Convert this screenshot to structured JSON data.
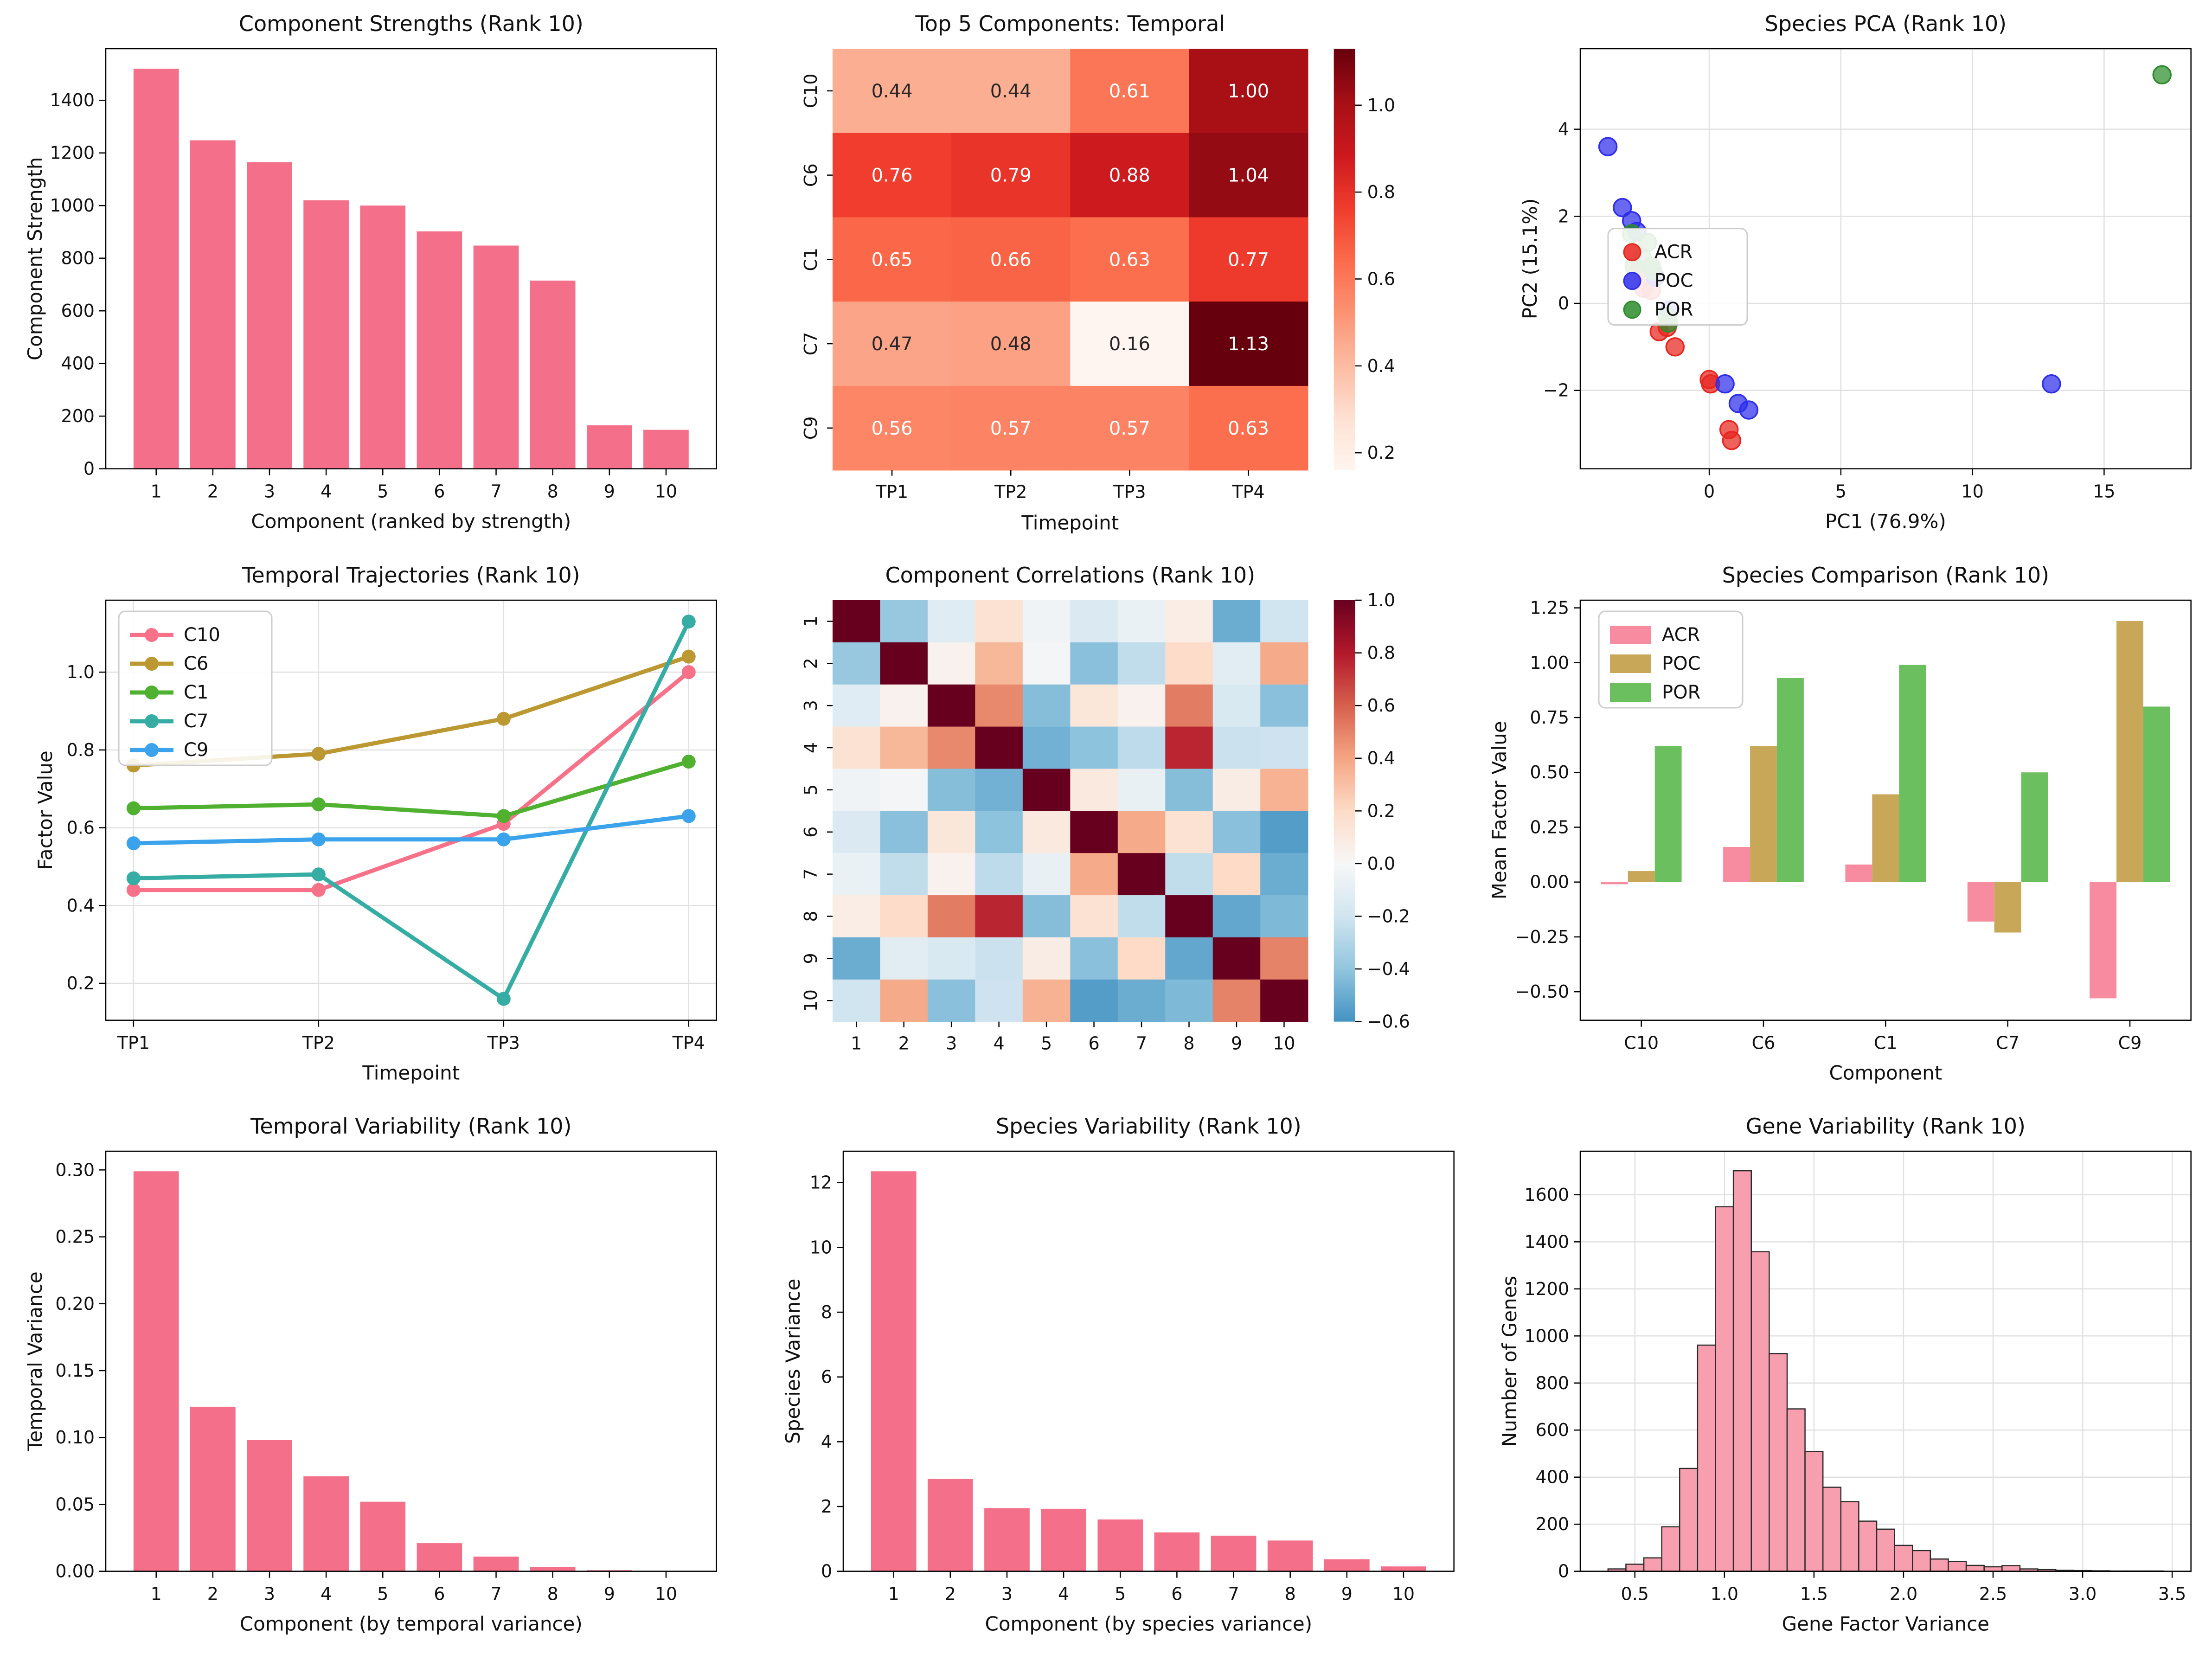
{
  "figure": {
    "background": "#ffffff",
    "grid_color": "#e0e0e0",
    "spine_color": "#000000",
    "text_color": "#111111",
    "annot_dark": "#262626",
    "annot_light": "#ffffff"
  },
  "chart_data": [
    {
      "id": "component-strengths",
      "type": "bar",
      "title": "Component Strengths (Rank 10)",
      "xlabel": "Component (ranked by strength)",
      "ylabel": "Component Strength",
      "categories": [
        "1",
        "2",
        "3",
        "4",
        "5",
        "6",
        "7",
        "8",
        "9",
        "10"
      ],
      "values": [
        1520,
        1248,
        1165,
        1020,
        1000,
        902,
        848,
        715,
        165,
        148
      ],
      "bar_color": "#f4708a",
      "ylim": [
        0,
        1596
      ],
      "yticks": {
        "values": [
          0,
          200,
          400,
          600,
          800,
          1000,
          1200,
          1400
        ],
        "labels": [
          "0",
          "200",
          "400",
          "600",
          "800",
          "1000",
          "1200",
          "1400"
        ]
      },
      "grid": false
    },
    {
      "id": "top5-temporal",
      "type": "heatmap_annot",
      "title": "Top 5 Components: Temporal",
      "xlabel": "Timepoint",
      "rows": [
        "C10",
        "C6",
        "C1",
        "C7",
        "C9"
      ],
      "cols": [
        "TP1",
        "TP2",
        "TP3",
        "TP4"
      ],
      "values": [
        [
          0.44,
          0.44,
          0.61,
          1.0
        ],
        [
          0.76,
          0.79,
          0.88,
          1.04
        ],
        [
          0.65,
          0.66,
          0.63,
          0.77
        ],
        [
          0.47,
          0.48,
          0.16,
          1.13
        ],
        [
          0.56,
          0.57,
          0.57,
          0.63
        ]
      ],
      "vmin": 0.16,
      "vmax": 1.13,
      "cmap": "reds",
      "colorbar": {
        "ticks": [
          1.0,
          0.8,
          0.6,
          0.4,
          0.2
        ],
        "labels": [
          "1.0",
          "0.8",
          "0.6",
          "0.4",
          "0.2"
        ]
      }
    },
    {
      "id": "species-pca",
      "type": "scatter",
      "title": "Species PCA (Rank 10)",
      "xlabel": "PC1 (76.9%)",
      "ylabel": "PC2 (15.1%)",
      "xlim": [
        -4.9,
        18.3
      ],
      "ylim": [
        -3.8,
        5.85
      ],
      "xticks": {
        "values": [
          0,
          5,
          10,
          15
        ],
        "labels": [
          "0",
          "5",
          "10",
          "15"
        ]
      },
      "yticks": {
        "values": [
          -2,
          0,
          2,
          4
        ],
        "labels": [
          "−2",
          "0",
          "2",
          "4"
        ]
      },
      "grid": true,
      "legend": {
        "position": "lower-left"
      },
      "series": [
        {
          "name": "ACR",
          "color": "#e8251f",
          "points": [
            [
              -2.7,
              0.75
            ],
            [
              -2.5,
              0.35
            ],
            [
              -2.2,
              0.3
            ],
            [
              -1.9,
              -0.65
            ],
            [
              -1.6,
              -0.55
            ],
            [
              -1.3,
              -1.0
            ],
            [
              0.0,
              -1.75
            ],
            [
              0.05,
              -1.85
            ],
            [
              0.75,
              -2.9
            ],
            [
              0.85,
              -3.15
            ]
          ]
        },
        {
          "name": "POC",
          "color": "#2e2eec",
          "points": [
            [
              -3.85,
              3.6
            ],
            [
              -3.3,
              2.2
            ],
            [
              -2.95,
              1.9
            ],
            [
              -2.75,
              1.65
            ],
            [
              -2.05,
              0.6
            ],
            [
              -1.5,
              -0.15
            ],
            [
              0.6,
              -1.85
            ],
            [
              1.1,
              -2.3
            ],
            [
              1.5,
              -2.45
            ],
            [
              13.0,
              -1.85
            ]
          ]
        },
        {
          "name": "POR",
          "color": "#2c8c2c",
          "points": [
            [
              -2.95,
              1.6
            ],
            [
              -2.35,
              1.4
            ],
            [
              -2.55,
              1.05
            ],
            [
              -2.85,
              0.85
            ],
            [
              -2.2,
              0.85
            ],
            [
              -2.15,
              0.75
            ],
            [
              -1.6,
              -0.3
            ],
            [
              -1.55,
              -0.45
            ],
            [
              17.2,
              5.25
            ]
          ]
        }
      ]
    },
    {
      "id": "temporal-trajectories",
      "type": "line",
      "title": "Temporal Trajectories (Rank 10)",
      "xlabel": "Timepoint",
      "ylabel": "Factor Value",
      "x_categories": [
        "TP1",
        "TP2",
        "TP3",
        "TP4"
      ],
      "ylim": [
        0.105,
        1.185
      ],
      "yticks": {
        "values": [
          0.2,
          0.4,
          0.6,
          0.8,
          1.0
        ],
        "labels": [
          "0.2",
          "0.4",
          "0.6",
          "0.8",
          "1.0"
        ]
      },
      "grid": true,
      "legend": {
        "position": "upper-left"
      },
      "series": [
        {
          "name": "C10",
          "color": "#f77189",
          "values": [
            0.44,
            0.44,
            0.61,
            1.0
          ]
        },
        {
          "name": "C6",
          "color": "#bb9832",
          "values": [
            0.76,
            0.79,
            0.88,
            1.04
          ]
        },
        {
          "name": "C1",
          "color": "#50b131",
          "values": [
            0.65,
            0.66,
            0.63,
            0.77
          ]
        },
        {
          "name": "C7",
          "color": "#36ada4",
          "values": [
            0.47,
            0.48,
            0.16,
            1.13
          ]
        },
        {
          "name": "C9",
          "color": "#3ba3ec",
          "values": [
            0.56,
            0.57,
            0.57,
            0.63
          ]
        }
      ]
    },
    {
      "id": "component-correlations",
      "type": "heatmap_corr",
      "title": "Component Correlations (Rank 10)",
      "rows": [
        "1",
        "2",
        "3",
        "4",
        "5",
        "6",
        "7",
        "8",
        "9",
        "10"
      ],
      "cols": [
        "1",
        "2",
        "3",
        "4",
        "5",
        "6",
        "7",
        "8",
        "9",
        "10"
      ],
      "values": [
        [
          1.0,
          -0.38,
          -0.12,
          0.15,
          -0.04,
          -0.15,
          -0.07,
          0.07,
          -0.5,
          -0.2
        ],
        [
          -0.38,
          1.0,
          0.04,
          0.33,
          -0.02,
          -0.42,
          -0.25,
          0.19,
          -0.11,
          0.38
        ],
        [
          -0.12,
          0.04,
          1.0,
          0.48,
          -0.43,
          0.12,
          0.04,
          0.52,
          -0.16,
          -0.42
        ],
        [
          0.15,
          0.33,
          0.48,
          1.0,
          -0.48,
          -0.41,
          -0.26,
          0.76,
          -0.22,
          -0.21
        ],
        [
          -0.04,
          -0.02,
          -0.43,
          -0.48,
          1.0,
          0.1,
          -0.08,
          -0.43,
          0.08,
          0.35
        ],
        [
          -0.15,
          -0.42,
          0.12,
          -0.41,
          0.1,
          1.0,
          0.38,
          0.15,
          -0.42,
          -0.56
        ],
        [
          -0.07,
          -0.25,
          0.04,
          -0.26,
          -0.08,
          0.38,
          1.0,
          -0.25,
          0.2,
          -0.5
        ],
        [
          0.07,
          0.19,
          0.52,
          0.76,
          -0.43,
          0.15,
          -0.25,
          1.0,
          -0.52,
          -0.45
        ],
        [
          -0.5,
          -0.11,
          -0.16,
          -0.22,
          0.08,
          -0.42,
          0.2,
          -0.52,
          1.0,
          0.5
        ],
        [
          -0.2,
          0.38,
          -0.42,
          -0.21,
          0.35,
          -0.56,
          -0.5,
          -0.45,
          0.5,
          1.0
        ]
      ],
      "vmin": -0.6,
      "vmax": 1.0,
      "cmap": "rdbu_r",
      "colorbar": {
        "ticks": [
          1.0,
          0.8,
          0.6,
          0.4,
          0.2,
          0.0,
          -0.2,
          -0.4,
          -0.6
        ],
        "labels": [
          "1.0",
          "0.8",
          "0.6",
          "0.4",
          "0.2",
          "0.0",
          "−0.2",
          "−0.4",
          "−0.6"
        ]
      }
    },
    {
      "id": "species-comparison",
      "type": "grouped_bar",
      "title": "Species Comparison (Rank 10)",
      "xlabel": "Component",
      "ylabel": "Mean Factor Value",
      "categories": [
        "C10",
        "C6",
        "C1",
        "C7",
        "C9"
      ],
      "ylim": [
        -0.63,
        1.285
      ],
      "yticks": {
        "values": [
          -0.5,
          -0.25,
          0.0,
          0.25,
          0.5,
          0.75,
          1.0,
          1.25
        ],
        "labels": [
          "−0.50",
          "−0.25",
          "0.00",
          "0.25",
          "0.50",
          "0.75",
          "1.00",
          "1.25"
        ]
      },
      "grid": false,
      "legend": {
        "position": "upper-left"
      },
      "series": [
        {
          "name": "ACR",
          "color": "#f78ca0",
          "values": [
            -0.01,
            0.16,
            0.08,
            -0.18,
            -0.53
          ]
        },
        {
          "name": "POC",
          "color": "#c8a858",
          "values": [
            0.05,
            0.62,
            0.4,
            -0.23,
            1.19
          ]
        },
        {
          "name": "POR",
          "color": "#6cbf5e",
          "values": [
            0.62,
            0.93,
            0.99,
            0.5,
            0.8
          ]
        }
      ]
    },
    {
      "id": "temporal-variability",
      "type": "bar",
      "title": "Temporal Variability (Rank 10)",
      "xlabel": "Component (by temporal variance)",
      "ylabel": "Temporal Variance",
      "categories": [
        "1",
        "2",
        "3",
        "4",
        "5",
        "6",
        "7",
        "8",
        "9",
        "10"
      ],
      "values": [
        0.299,
        0.123,
        0.098,
        0.071,
        0.052,
        0.021,
        0.011,
        0.003,
        0.0008,
        0.0003
      ],
      "bar_color": "#f4708a",
      "ylim": [
        0,
        0.314
      ],
      "yticks": {
        "values": [
          0,
          0.05,
          0.1,
          0.15,
          0.2,
          0.25,
          0.3
        ],
        "labels": [
          "0.00",
          "0.05",
          "0.10",
          "0.15",
          "0.20",
          "0.25",
          "0.30"
        ]
      },
      "grid": false
    },
    {
      "id": "species-variability",
      "type": "bar",
      "title": "Species Variability (Rank 10)",
      "xlabel": "Component (by species variance)",
      "ylabel": "Species Variance",
      "categories": [
        "1",
        "2",
        "3",
        "4",
        "5",
        "6",
        "7",
        "8",
        "9",
        "10"
      ],
      "values": [
        12.35,
        2.85,
        1.95,
        1.93,
        1.6,
        1.2,
        1.1,
        0.95,
        0.37,
        0.15
      ],
      "bar_color": "#f4708a",
      "ylim": [
        0,
        12.97
      ],
      "yticks": {
        "values": [
          0,
          2,
          4,
          6,
          8,
          10,
          12
        ],
        "labels": [
          "0",
          "2",
          "4",
          "6",
          "8",
          "10",
          "12"
        ]
      },
      "grid": false
    },
    {
      "id": "gene-variability",
      "type": "histogram",
      "title": "Gene Variability (Rank 10)",
      "xlabel": "Gene Factor Variance",
      "ylabel": "Number of Genes",
      "bin_start": 0.35,
      "bin_width": 0.1,
      "counts": [
        10,
        30,
        57,
        189,
        437,
        961,
        1549,
        1702,
        1358,
        925,
        690,
        509,
        357,
        296,
        213,
        179,
        110,
        88,
        52,
        42,
        25,
        19,
        24,
        10,
        7,
        4,
        3,
        2,
        1,
        1,
        1
      ],
      "bar_fill": "#f79fae",
      "bar_edge": "#2b2b2b",
      "xlim": [
        0.195,
        3.605
      ],
      "ylim": [
        0,
        1785
      ],
      "xticks": {
        "values": [
          0.5,
          1.0,
          1.5,
          2.0,
          2.5,
          3.0,
          3.5
        ],
        "labels": [
          "0.5",
          "1.0",
          "1.5",
          "2.0",
          "2.5",
          "3.0",
          "3.5"
        ]
      },
      "yticks": {
        "values": [
          0,
          200,
          400,
          600,
          800,
          1000,
          1200,
          1400,
          1600
        ],
        "labels": [
          "0",
          "200",
          "400",
          "600",
          "800",
          "1000",
          "1200",
          "1400",
          "1600"
        ]
      },
      "grid": true
    }
  ]
}
